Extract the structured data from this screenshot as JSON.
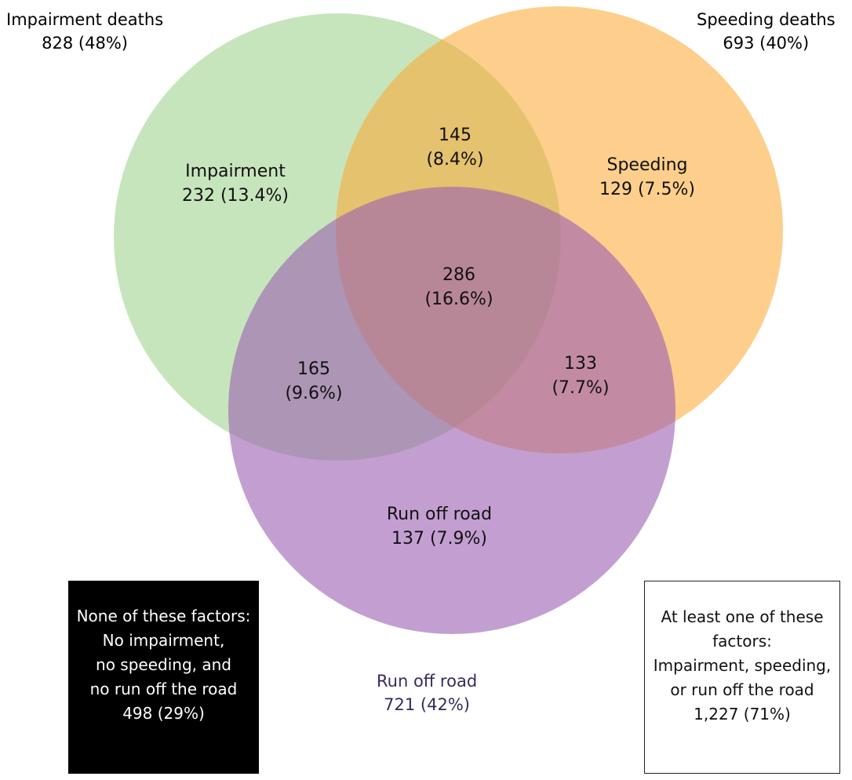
{
  "colors": {
    "impairment": "#8fcb7a",
    "speeding": "#fca62e",
    "run_off_road": "#9b5fb3",
    "black_box": "#000000"
  },
  "outer_labels": {
    "impairment": {
      "title": "Impairment deaths",
      "value": "828 (48%)"
    },
    "speeding": {
      "title": "Speeding deaths",
      "value": "693 (40%)"
    },
    "run_off_road": {
      "title": "Run off road",
      "value": "721 (42%)"
    }
  },
  "regions": {
    "impairment_only": {
      "title": "Impairment",
      "value": "232 (13.4%)"
    },
    "speeding_only": {
      "title": "Speeding",
      "value": "129 (7.5%)"
    },
    "impairment_speeding": {
      "count": "145",
      "pct": "(8.4%)"
    },
    "all_three": {
      "count": "286",
      "pct": "(16.6%)"
    },
    "impairment_run_off": {
      "count": "165",
      "pct": "(9.6%)"
    },
    "speeding_run_off": {
      "count": "133",
      "pct": "(7.7%)"
    },
    "run_off_only": {
      "title": "Run off road",
      "value": "137 (7.9%)"
    }
  },
  "none_box": {
    "line1": "None of these factors:",
    "line2": "No impairment,",
    "line3": "no speeding, and",
    "line4": "no run off the road",
    "line5": "498 (29%)"
  },
  "any_box": {
    "line1": "At least one of these",
    "line2": "factors:",
    "line3": "Impairment, speeding,",
    "line4": "or run off the road",
    "line5": "1,227 (71%)"
  }
}
